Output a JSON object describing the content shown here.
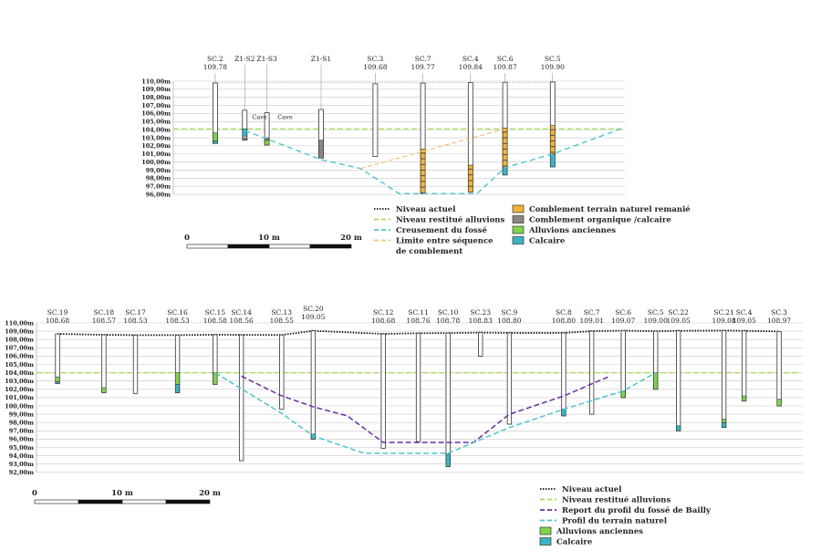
{
  "colors": {
    "niveau_actuel": "#111111",
    "niveau_alluvions": "#a6dc5a",
    "creusement": "#4fc4cc",
    "limite": "#f2c27a",
    "report_bailly": "#6a2fa0",
    "remanie": "#f0b43c",
    "organique": "#8c8680",
    "alluvions": "#82d24e",
    "calcaire": "#3ab4c4",
    "grid": "#c8c8c8"
  },
  "top_section": {
    "y_range": [
      96,
      110
    ],
    "y_tick_values": [
      110,
      109,
      108,
      107,
      106,
      105,
      104,
      103,
      102,
      101,
      100,
      99,
      98,
      97,
      96
    ],
    "y_tick_labels": [
      "110,00m",
      "109,00m",
      "108,00m",
      "107,00m",
      "106,00m",
      "105,00m",
      "104,00m",
      "103,00m",
      "102,00m",
      "101,00m",
      "100,00m",
      "99,00m",
      "98,00m",
      "97,00m",
      "96,00m"
    ],
    "length_m": 55,
    "alluvion_level": 104.1,
    "boreholes": [
      {
        "name": "SC.2",
        "elev": "109.78",
        "dist": 5.1,
        "top": 109.78,
        "bottom": 102.3,
        "layers": [
          {
            "t": "alluvions",
            "from": 103.6,
            "to": 102.6
          },
          {
            "t": "calcaire",
            "from": 102.6,
            "to": 102.3
          }
        ]
      },
      {
        "name": "Z1-S2",
        "elev": "",
        "dist": 8.7,
        "top": 106.4,
        "bottom": 102.7,
        "layers": [
          {
            "t": "calcaire",
            "from": 104.1,
            "to": 103.2
          },
          {
            "t": "organique",
            "from": 103.0,
            "to": 102.7
          }
        ]
      },
      {
        "name": "Z1-S3",
        "elev": "",
        "dist": 11.4,
        "top": 106.1,
        "bottom": 102.1,
        "layers": [
          {
            "t": "organique",
            "from": 103.0,
            "to": 102.7
          },
          {
            "t": "alluvions",
            "from": 102.7,
            "to": 102.1
          }
        ]
      },
      {
        "name": "Z1-S1",
        "elev": "",
        "dist": 18.0,
        "top": 106.5,
        "bottom": 100.5,
        "layers": [
          {
            "t": "organique",
            "from": 102.7,
            "to": 100.5
          }
        ]
      },
      {
        "name": "SC.3",
        "elev": "109.68",
        "dist": 24.6,
        "top": 109.68,
        "bottom": 100.7,
        "layers": []
      },
      {
        "name": "SC.7",
        "elev": "109.77",
        "dist": 30.4,
        "top": 109.77,
        "bottom": 96.1,
        "layers": [
          {
            "t": "remanie",
            "from": 101.6,
            "to": 96.1
          }
        ]
      },
      {
        "name": "SC.4",
        "elev": "109.84",
        "dist": 36.2,
        "top": 109.84,
        "bottom": 96.3,
        "layers": [
          {
            "t": "remanie",
            "from": 99.6,
            "to": 96.3
          }
        ]
      },
      {
        "name": "SC.6",
        "elev": "109.87",
        "dist": 40.4,
        "top": 109.87,
        "bottom": 98.4,
        "layers": [
          {
            "t": "remanie",
            "from": 104.2,
            "to": 99.3
          },
          {
            "t": "calcaire",
            "from": 99.3,
            "to": 98.4
          }
        ]
      },
      {
        "name": "SC.5",
        "elev": "109.90",
        "dist": 46.2,
        "top": 109.9,
        "bottom": 99.4,
        "layers": [
          {
            "t": "remanie",
            "from": 104.5,
            "to": 101.0
          },
          {
            "t": "calcaire",
            "from": 101.0,
            "to": 99.4
          }
        ]
      }
    ],
    "annotations": [
      {
        "text": "Cave",
        "dist": 9.6,
        "level": 105.3
      },
      {
        "text": "Cave",
        "dist": 12.7,
        "level": 105.3
      }
    ],
    "creusement_profile": [
      [
        8.7,
        103.9
      ],
      [
        18,
        100.3
      ],
      [
        22.8,
        99.2
      ],
      [
        27.5,
        96.1
      ],
      [
        37,
        96.1
      ],
      [
        40.4,
        99.3
      ],
      [
        46.2,
        101.0
      ],
      [
        54.5,
        104.1
      ]
    ],
    "limite_profile": [
      [
        22.8,
        99.2
      ],
      [
        40.4,
        104.1
      ]
    ],
    "legend_lines": [
      "Niveau actuel",
      "Niveau restitué alluvions",
      "Creusement du fossé",
      "Limite entre séquence",
      "de comblement"
    ],
    "legend_fills": [
      "Comblement terrain naturel remanié",
      "Comblement organique /calcaire",
      "Alluvions anciennes",
      "Calcaire"
    ],
    "scale": {
      "start": "0",
      "mid": "10 m",
      "end": "20 m"
    }
  },
  "bottom_section": {
    "y_range": [
      92,
      110
    ],
    "y_tick_values": [
      110,
      109,
      108,
      107,
      106,
      105,
      104,
      103,
      102,
      101,
      100,
      99,
      98,
      97,
      96,
      95,
      94,
      93,
      92
    ],
    "y_tick_labels": [
      "110,00m",
      "109,00m",
      "108,00m",
      "107,00m",
      "106,00m",
      "105,00m",
      "104,00m",
      "103,00m",
      "102,00m",
      "101,00m",
      "100,00m",
      "99,00m",
      "98,00m",
      "97,00m",
      "96,00m",
      "95,00m",
      "94,00m",
      "93,00m",
      "92,00m"
    ],
    "length_m": 87,
    "alluvion_level": 104.0,
    "boreholes": [
      {
        "name": "SC.19",
        "elev": "108.68",
        "dist": 2.4,
        "top": 108.68,
        "bottom": 102.7,
        "layers": [
          {
            "t": "alluvions",
            "from": 103.5,
            "to": 102.9
          },
          {
            "t": "calcaire",
            "from": 102.9,
            "to": 102.7
          }
        ]
      },
      {
        "name": "SC.18",
        "elev": "108.57",
        "dist": 7.7,
        "top": 108.57,
        "bottom": 101.6,
        "layers": [
          {
            "t": "alluvions",
            "from": 102.2,
            "to": 101.6
          }
        ]
      },
      {
        "name": "SC.17",
        "elev": "108.53",
        "dist": 11.3,
        "top": 108.53,
        "bottom": 101.5,
        "layers": []
      },
      {
        "name": "SC.16",
        "elev": "108.53",
        "dist": 16.1,
        "top": 108.53,
        "bottom": 101.6,
        "layers": [
          {
            "t": "alluvions",
            "from": 104.0,
            "to": 102.6
          },
          {
            "t": "calcaire",
            "from": 102.6,
            "to": 101.6
          }
        ]
      },
      {
        "name": "SC.15",
        "elev": "108.58",
        "dist": 20.4,
        "top": 108.58,
        "bottom": 102.6,
        "layers": [
          {
            "t": "alluvions",
            "from": 104.0,
            "to": 102.6
          }
        ]
      },
      {
        "name": "SC.14",
        "elev": "108.56",
        "dist": 23.4,
        "top": 108.56,
        "bottom": 93.4,
        "layers": []
      },
      {
        "name": "SC.13",
        "elev": "108.55",
        "dist": 28.0,
        "top": 108.55,
        "bottom": 99.6,
        "layers": []
      },
      {
        "name": "SC.20",
        "elev": "109.05",
        "dist": 31.6,
        "top": 109.05,
        "bottom": 96.0,
        "layers": [
          {
            "t": "calcaire",
            "from": 96.6,
            "to": 96.0
          }
        ],
        "raised": true
      },
      {
        "name": "SC.12",
        "elev": "108.68",
        "dist": 39.6,
        "top": 108.68,
        "bottom": 94.9,
        "layers": []
      },
      {
        "name": "SC.11",
        "elev": "108.76",
        "dist": 43.6,
        "top": 108.76,
        "bottom": 95.7,
        "layers": []
      },
      {
        "name": "SC.10",
        "elev": "108.78",
        "dist": 47.0,
        "top": 108.78,
        "bottom": 92.7,
        "layers": [
          {
            "t": "calcaire",
            "from": 94.2,
            "to": 92.7
          }
        ]
      },
      {
        "name": "SC.23",
        "elev": "108.83",
        "dist": 50.7,
        "top": 108.83,
        "bottom": 106.0,
        "layers": []
      },
      {
        "name": "SC.9",
        "elev": "108.80",
        "dist": 54.0,
        "top": 108.8,
        "bottom": 97.8,
        "layers": []
      },
      {
        "name": "SC.8",
        "elev": "108.80",
        "dist": 60.2,
        "top": 108.8,
        "bottom": 98.8,
        "layers": [
          {
            "t": "calcaire",
            "from": 99.6,
            "to": 98.8
          }
        ]
      },
      {
        "name": "SC.7",
        "elev": "109.01",
        "dist": 63.4,
        "top": 109.01,
        "bottom": 99.0,
        "layers": []
      },
      {
        "name": "SC.6",
        "elev": "109.07",
        "dist": 67.0,
        "top": 109.07,
        "bottom": 101.0,
        "layers": [
          {
            "t": "alluvions",
            "from": 101.8,
            "to": 101.0
          }
        ]
      },
      {
        "name": "SC.5",
        "elev": "109.00",
        "dist": 70.7,
        "top": 109.0,
        "bottom": 102.0,
        "layers": [
          {
            "t": "alluvions",
            "from": 104.0,
            "to": 102.0
          }
        ]
      },
      {
        "name": "SC.22",
        "elev": "109.05",
        "dist": 73.3,
        "top": 109.05,
        "bottom": 97.0,
        "layers": [
          {
            "t": "calcaire",
            "from": 97.6,
            "to": 97.0
          }
        ]
      },
      {
        "name": "SC.21",
        "elev": "109.08",
        "dist": 78.5,
        "top": 109.08,
        "bottom": 97.4,
        "layers": [
          {
            "t": "alluvions",
            "from": 98.4,
            "to": 98.0
          },
          {
            "t": "calcaire",
            "from": 98.0,
            "to": 97.4
          }
        ]
      },
      {
        "name": "SC.4",
        "elev": "109.05",
        "dist": 80.8,
        "top": 109.05,
        "bottom": 100.6,
        "layers": [
          {
            "t": "alluvions",
            "from": 101.2,
            "to": 100.6
          }
        ]
      },
      {
        "name": "SC.3",
        "elev": "108.97",
        "dist": 84.8,
        "top": 108.97,
        "bottom": 100.0,
        "layers": [
          {
            "t": "alluvions",
            "from": 100.8,
            "to": 100.0
          }
        ]
      }
    ],
    "bailly_profile": [
      [
        23.4,
        103.6
      ],
      [
        27.8,
        101.3
      ],
      [
        31.6,
        99.9
      ],
      [
        35.5,
        98.8
      ],
      [
        39.6,
        95.6
      ],
      [
        49.9,
        95.6
      ],
      [
        54.0,
        99.0
      ],
      [
        60.2,
        101.2
      ],
      [
        65.5,
        103.6
      ]
    ],
    "terrain_profile": [
      [
        20.4,
        104.0
      ],
      [
        28.0,
        99.1
      ],
      [
        31.6,
        96.4
      ],
      [
        37.4,
        94.3
      ],
      [
        47.0,
        94.3
      ],
      [
        54.0,
        97.4
      ],
      [
        60.2,
        99.6
      ],
      [
        67.0,
        101.8
      ],
      [
        70.7,
        104.0
      ]
    ],
    "legend_lines": [
      "Niveau actuel",
      "Niveau restitué alluvions",
      "Report du profil du fossé de Bailly",
      "Profil du terrain naturel"
    ],
    "legend_fills": [
      "Alluvions anciennes",
      "Calcaire"
    ],
    "scale": {
      "start": "0",
      "mid": "10 m",
      "end": "20 m"
    }
  }
}
